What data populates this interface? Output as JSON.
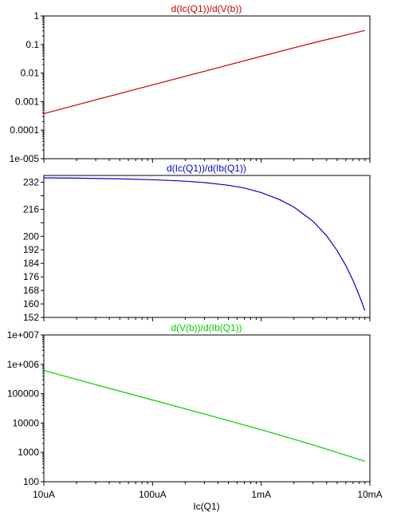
{
  "chart_data": [
    {
      "type": "line",
      "title": "d(Ic(Q1))/d(V(b))",
      "color": "#cc0000",
      "y_scale": "log",
      "x_scale": "log",
      "ylim": [
        1e-05,
        1
      ],
      "y_ticks": [
        {
          "value": 1,
          "label": "1"
        },
        {
          "value": 0.1,
          "label": "0.1"
        },
        {
          "value": 0.01,
          "label": "0.01"
        },
        {
          "value": 0.001,
          "label": "0.001"
        },
        {
          "value": 0.0001,
          "label": "0.0001"
        },
        {
          "value": 1e-05,
          "label": "1e-005"
        }
      ],
      "series": [
        {
          "x": [
            1e-05,
            3e-05,
            0.0001,
            0.0003,
            0.001,
            0.003,
            0.009
          ],
          "y": [
            0.00038,
            0.00115,
            0.00385,
            0.0115,
            0.0385,
            0.114,
            0.31
          ]
        }
      ]
    },
    {
      "type": "line",
      "title": "d(Ic(Q1))/d(Ib(Q1))",
      "color": "#0000cc",
      "y_scale": "linear",
      "x_scale": "log",
      "ylim": [
        152,
        236
      ],
      "y_ticks": [
        {
          "value": 232,
          "label": "232"
        },
        {
          "value": 224,
          "label": ""
        },
        {
          "value": 216,
          "label": "216"
        },
        {
          "value": 208,
          "label": ""
        },
        {
          "value": 200,
          "label": "200"
        },
        {
          "value": 192,
          "label": "192"
        },
        {
          "value": 184,
          "label": "184"
        },
        {
          "value": 176,
          "label": "176"
        },
        {
          "value": 168,
          "label": "168"
        },
        {
          "value": 160,
          "label": "160"
        },
        {
          "value": 152,
          "label": "152"
        }
      ],
      "series": [
        {
          "x": [
            1e-05,
            2e-05,
            5e-05,
            0.0001,
            0.0002,
            0.0003,
            0.0005,
            0.0007,
            0.001,
            0.0015,
            0.002,
            0.003,
            0.004,
            0.005,
            0.006,
            0.007,
            0.008,
            0.009
          ],
          "y": [
            234.6,
            234.4,
            234.0,
            233.5,
            232.6,
            231.8,
            230.2,
            228.6,
            225.9,
            221.5,
            217.3,
            208.9,
            200.3,
            191.5,
            182.7,
            173.8,
            164.8,
            156.0
          ]
        }
      ]
    },
    {
      "type": "line",
      "title": "d(V(b))/d(Ib(Q1))",
      "color": "#00cc00",
      "y_scale": "log",
      "x_scale": "log",
      "xlabel": "Ic(Q1)",
      "ylim": [
        100,
        10000000
      ],
      "y_ticks": [
        {
          "value": 10000000,
          "label": "1e+007"
        },
        {
          "value": 1000000,
          "label": "1e+006"
        },
        {
          "value": 100000,
          "label": "100000"
        },
        {
          "value": 10000,
          "label": "10000"
        },
        {
          "value": 1000,
          "label": "1000"
        },
        {
          "value": 100,
          "label": "100"
        }
      ],
      "x_ticks": [
        {
          "value": 1e-05,
          "label": "10uA"
        },
        {
          "value": 0.0001,
          "label": "100uA"
        },
        {
          "value": 0.001,
          "label": "1mA"
        },
        {
          "value": 0.01,
          "label": "10mA"
        }
      ],
      "series": [
        {
          "x": [
            1e-05,
            3e-05,
            0.0001,
            0.0003,
            0.001,
            0.003,
            0.009
          ],
          "y": [
            620000,
            203000,
            61000,
            20300,
            5900,
            1800,
            500
          ]
        }
      ]
    }
  ]
}
